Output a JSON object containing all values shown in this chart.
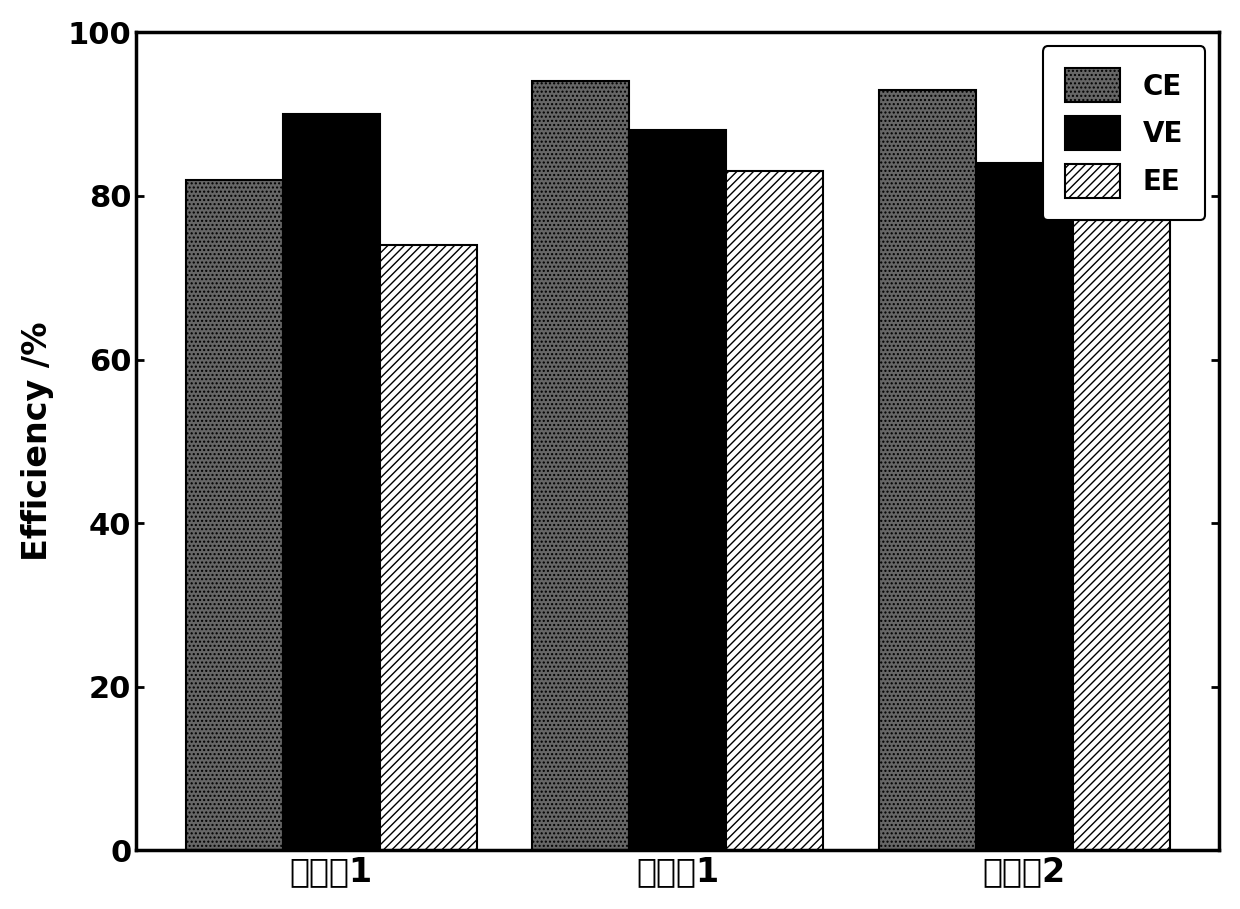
{
  "categories": [
    "对比例1",
    "实施例1",
    "对比例2"
  ],
  "series": {
    "CE": [
      82,
      94,
      93
    ],
    "VE": [
      90,
      88,
      84
    ],
    "EE": [
      74,
      83,
      77
    ]
  },
  "ylabel": "Efficiency /%",
  "ylim": [
    0,
    100
  ],
  "yticks": [
    0,
    20,
    40,
    60,
    80,
    100
  ],
  "legend_labels": [
    "CE",
    "VE",
    "EE"
  ],
  "bar_width": 0.28,
  "ce_color": "#666666",
  "ve_color": "#000000",
  "ee_color": "#ffffff",
  "ee_hatch": "////",
  "ce_hatch": "....",
  "background_color": "#ffffff",
  "axis_linewidth": 2.5,
  "tick_fontsize": 22,
  "ylabel_fontsize": 24,
  "xlabel_fontsize": 24,
  "legend_fontsize": 20
}
